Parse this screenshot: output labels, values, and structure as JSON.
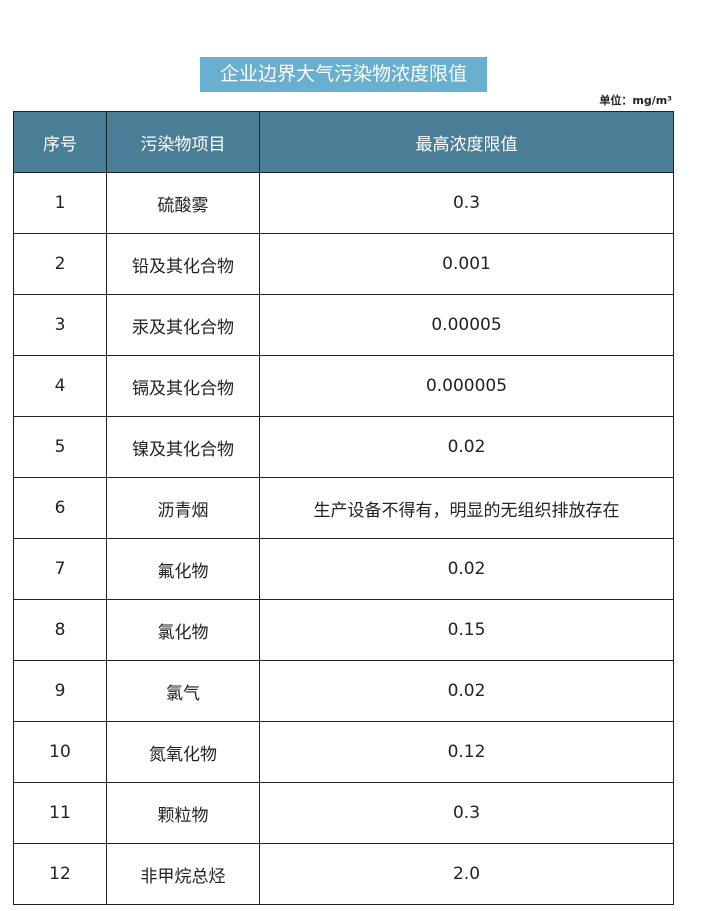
{
  "title": "企业边界大气污染物浓度限值",
  "unit": "单位：mg/m³",
  "headers": [
    "序号",
    "污染物项目",
    "最高浓度限值"
  ],
  "colors": {
    "title_bg": "#69afd0",
    "header_bg": "#4a7e96"
  },
  "rows": [
    [
      "1",
      "硫酸雾",
      "0.3"
    ],
    [
      "2",
      "铅及其化合物",
      "0.001"
    ],
    [
      "3",
      "汞及其化合物",
      "0.00005"
    ],
    [
      "4",
      "镉及其化合物",
      "0.000005"
    ],
    [
      "5",
      "镍及其化合物",
      "0.02"
    ],
    [
      "6",
      "沥青烟",
      "生产设备不得有，明显的无组织排放存在"
    ],
    [
      "7",
      "氟化物",
      "0.02"
    ],
    [
      "8",
      "氯化物",
      "0.15"
    ],
    [
      "9",
      "氯气",
      "0.02"
    ],
    [
      "10",
      "氮氧化物",
      "0.12"
    ],
    [
      "11",
      "颗粒物",
      "0.3"
    ],
    [
      "12",
      "非甲烷总烃",
      "2.0"
    ]
  ]
}
